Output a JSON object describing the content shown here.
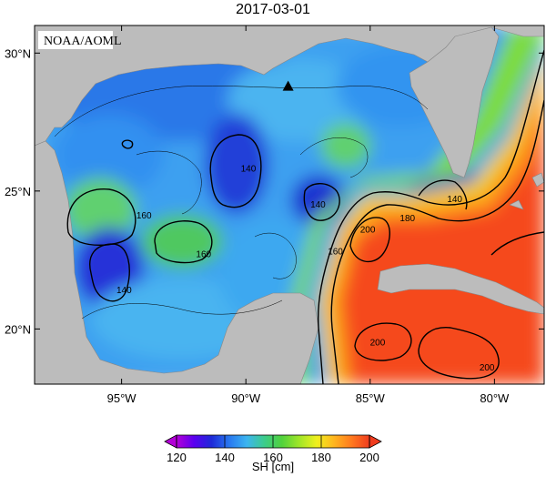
{
  "title": "2017-03-01",
  "source_label": "NOAA/AOML",
  "map": {
    "lat_ticks": [
      {
        "lat": 30,
        "label": "30°N"
      },
      {
        "lat": 25,
        "label": "25°N"
      },
      {
        "lat": 20,
        "label": "20°N"
      }
    ],
    "lon_ticks": [
      {
        "lon": -95,
        "label": "95°W"
      },
      {
        "lon": -90,
        "label": "90°W"
      },
      {
        "lon": -85,
        "label": "85°W"
      },
      {
        "lon": -80,
        "label": "80°W"
      }
    ],
    "contour_labels": [
      {
        "text": "140",
        "lon": -89.9,
        "lat": 25.7
      },
      {
        "text": "140",
        "lon": -87.1,
        "lat": 24.4
      },
      {
        "text": "140",
        "lon": -94.9,
        "lat": 21.3
      },
      {
        "text": "140",
        "lon": -81.6,
        "lat": 24.6
      },
      {
        "text": "160",
        "lon": -94.1,
        "lat": 24.0
      },
      {
        "text": "160",
        "lon": -91.7,
        "lat": 22.6
      },
      {
        "text": "160",
        "lon": -86.4,
        "lat": 22.7
      },
      {
        "text": "180",
        "lon": -83.5,
        "lat": 23.9
      },
      {
        "text": "200",
        "lon": -85.1,
        "lat": 23.5
      },
      {
        "text": "200",
        "lon": -84.7,
        "lat": 19.4
      },
      {
        "text": "200",
        "lon": -80.3,
        "lat": 18.5
      }
    ],
    "station_marker": {
      "type": "triangle",
      "lon": -88.3,
      "lat": 28.8
    }
  },
  "colorbar": {
    "title": "SH [cm]",
    "min": 120,
    "max": 200,
    "tick_values": [
      120,
      140,
      160,
      180,
      200
    ],
    "tick_labels": [
      "120",
      "140",
      "160",
      "180",
      "200"
    ],
    "colors": [
      "#b400d8",
      "#5a00f0",
      "#1e2ad8",
      "#2878f0",
      "#3cb4f0",
      "#3ccc8c",
      "#50d23c",
      "#a0e628",
      "#f0f01e",
      "#ffb41e",
      "#ff781e",
      "#f03c1e"
    ]
  },
  "colors": {
    "land": "#bcbcbc",
    "background": "#ffffff"
  }
}
